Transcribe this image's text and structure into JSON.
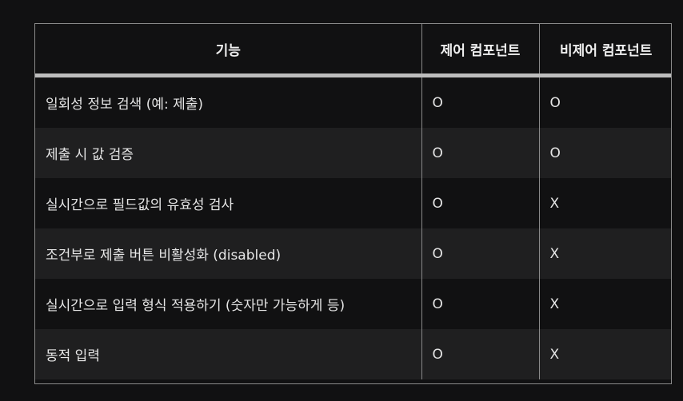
{
  "table": {
    "headers": [
      "기능",
      "제어 컴포넌트",
      "비제어 컴포넌트"
    ],
    "rows": [
      [
        "일회성 정보 검색 (예: 제출)",
        "O",
        "O"
      ],
      [
        "제출 시 값 검증",
        "O",
        "O"
      ],
      [
        "실시간으로 필드값의 유효성 검사",
        "O",
        "X"
      ],
      [
        "조건부로 제출 버튼 비활성화 (disabled)",
        "O",
        "X"
      ],
      [
        "실시간으로 입력 형식 적용하기 (숫자만 가능하게 등)",
        "O",
        "X"
      ],
      [
        "동적 입력",
        "O",
        "X"
      ]
    ]
  }
}
